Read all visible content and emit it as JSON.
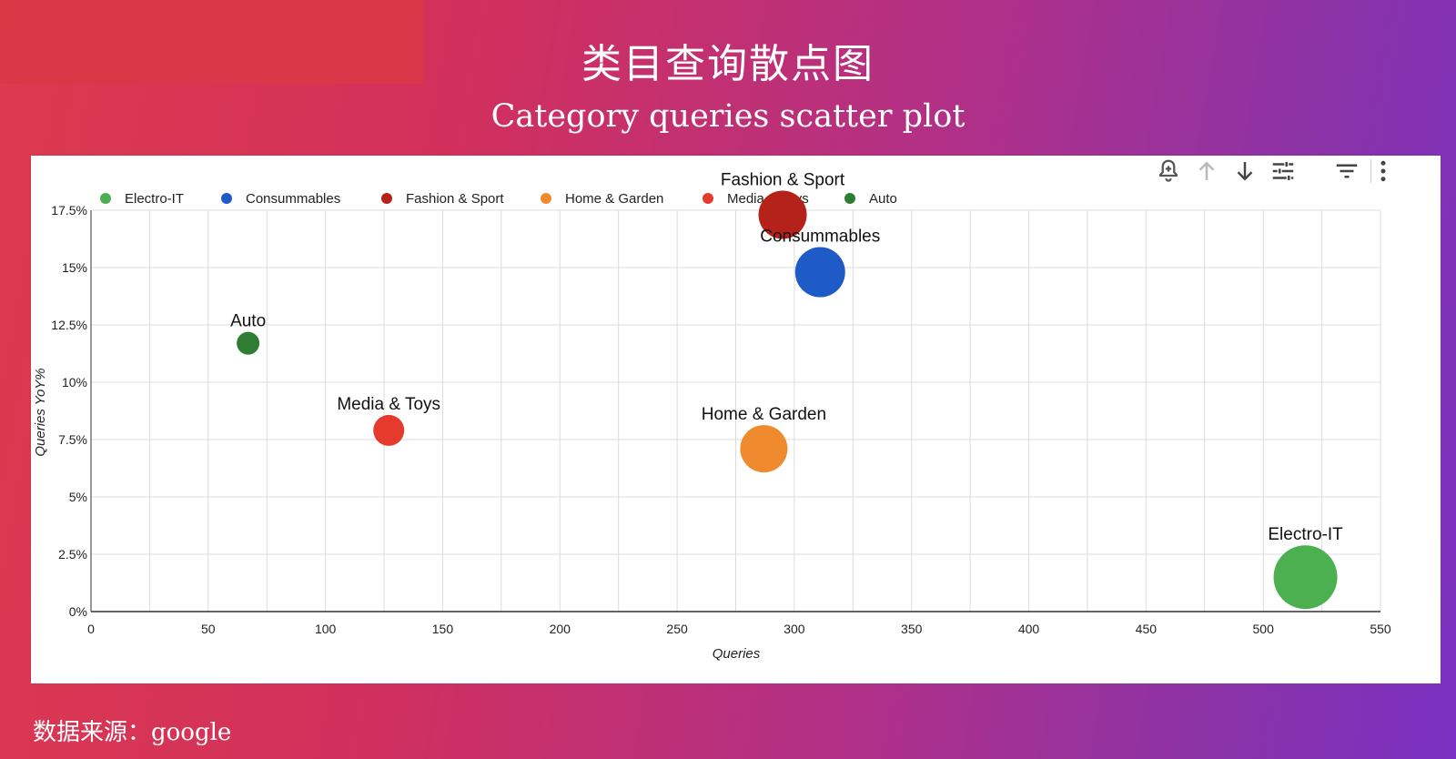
{
  "header": {
    "title_cn": "类目查询散点图",
    "title_en": "Category queries scatter plot"
  },
  "footer": {
    "source": "数据来源：google"
  },
  "toolbar": {
    "icons": [
      "add-alert-icon",
      "sort-up-icon",
      "sort-down-icon",
      "tune-icon",
      "filter-icon",
      "more-vert-icon"
    ]
  },
  "chart_data": {
    "type": "scatter",
    "title": "",
    "xlabel": "Queries",
    "ylabel": "Queries YoY%",
    "xlim": [
      0,
      550
    ],
    "ylim": [
      0,
      17.5
    ],
    "x_ticks": [
      "0",
      "50",
      "100",
      "150",
      "200",
      "250",
      "300",
      "350",
      "400",
      "450",
      "500",
      "550"
    ],
    "y_ticks": [
      "0%",
      "2.5%",
      "5%",
      "7.5%",
      "10%",
      "12.5%",
      "15%",
      "17.5%"
    ],
    "grid": true,
    "legend_position": "top",
    "series": [
      {
        "name": "Electro-IT",
        "color": "#4caf50",
        "x": 518,
        "y": 1.5,
        "size": 7
      },
      {
        "name": "Consummables",
        "color": "#1e5bc6",
        "x": 311,
        "y": 14.8,
        "size": 5.5
      },
      {
        "name": "Fashion & Sport",
        "color": "#b4221a",
        "x": 295,
        "y": 17.3,
        "size": 5.3
      },
      {
        "name": "Home & Garden",
        "color": "#ef8a2e",
        "x": 287,
        "y": 7.1,
        "size": 5.2
      },
      {
        "name": "Media & Toys",
        "color": "#e53a2c",
        "x": 127,
        "y": 7.9,
        "size": 3.4
      },
      {
        "name": "Auto",
        "color": "#2e7d32",
        "x": 67,
        "y": 11.7,
        "size": 2.5
      }
    ]
  }
}
